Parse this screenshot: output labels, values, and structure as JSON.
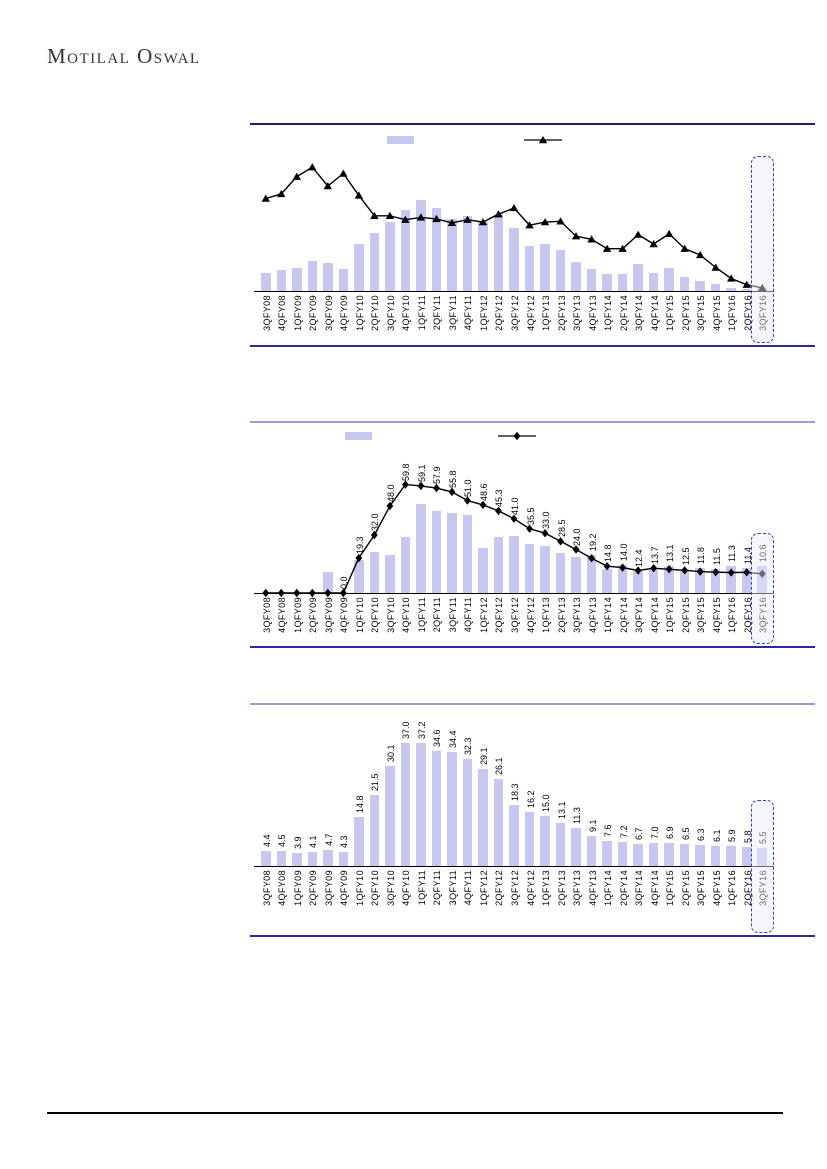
{
  "page": {
    "brand": "Motilal Oswal"
  },
  "highlighted_period": "3QFY16",
  "colors": {
    "bar_fill": "#C7C8F0",
    "line": "#000000",
    "chart_top_rule_dark": "#1E1E7D",
    "chart_top_rule_light": "#9C9CD6",
    "chart_bottom_rule": "#2B2B9C",
    "highlight_border": "#2F3FBF",
    "axis": "#000000"
  },
  "categories": [
    "3QFY08",
    "4QFY08",
    "1QFY09",
    "2QFY09",
    "3QFY09",
    "4QFY09",
    "1QFY10",
    "2QFY10",
    "3QFY10",
    "4QFY10",
    "1QFY11",
    "2QFY11",
    "3QFY11",
    "4QFY11",
    "1QFY12",
    "2QFY12",
    "3QFY12",
    "4QFY12",
    "1QFY13",
    "2QFY13",
    "3QFY13",
    "4QFY13",
    "1QFY14",
    "2QFY14",
    "3QFY14",
    "4QFY14",
    "1QFY15",
    "2QFY15",
    "3QFY15",
    "4QFY15",
    "1QFY16",
    "2QFY16",
    "3QFY16"
  ],
  "chart_data": [
    {
      "type": "bar+line",
      "legend": true,
      "marker": "triangle",
      "ylim": [
        0,
        90
      ],
      "series": [
        {
          "name": "bars",
          "type": "bar",
          "values": [
            11.5,
            13.5,
            15,
            19,
            18,
            14,
            30,
            37,
            44,
            52,
            58,
            53,
            46,
            48,
            44,
            49,
            40,
            29,
            30,
            26,
            18.5,
            14,
            11,
            11,
            17,
            11.5,
            15,
            9,
            6.5,
            4.5,
            2,
            1.5,
            2
          ]
        },
        {
          "name": "line",
          "type": "line",
          "values": [
            59,
            62,
            73,
            79,
            67,
            75,
            61,
            48,
            48,
            45.5,
            47,
            46,
            43.5,
            45.5,
            44,
            49,
            53,
            42,
            44,
            44.5,
            35,
            33,
            27,
            27,
            36,
            30,
            36.5,
            27,
            23,
            15,
            8,
            4,
            2
          ]
        }
      ],
      "value_labels": null,
      "highlight_last": true
    },
    {
      "type": "bar+line",
      "legend": true,
      "marker": "diamond",
      "ylim": [
        0,
        80
      ],
      "series": [
        {
          "name": "bars",
          "type": "bar",
          "values": [
            0,
            0,
            0,
            0,
            11.5,
            0,
            18,
            22.5,
            21,
            31,
            49,
            45,
            44,
            43,
            25,
            31,
            31.5,
            27,
            26,
            22,
            20,
            21,
            13.5,
            15.5,
            12,
            13,
            15,
            13,
            14,
            13.5,
            15,
            14,
            15
          ]
        },
        {
          "name": "line",
          "type": "line",
          "values": [
            0,
            0,
            0,
            0,
            0,
            0,
            19.3,
            32.0,
            48.0,
            59.8,
            59.1,
            57.9,
            55.8,
            51.0,
            48.6,
            45.3,
            41.0,
            35.5,
            33.0,
            28.5,
            24.0,
            19.2,
            14.8,
            14.0,
            12.4,
            13.7,
            13.1,
            12.5,
            11.8,
            11.5,
            11.3,
            11.4,
            10.6
          ]
        }
      ],
      "value_labels": [
        null,
        null,
        null,
        null,
        null,
        "0.0",
        "19.3",
        "32.0",
        "48.0",
        "59.8",
        "59.1",
        "57.9",
        "55.8",
        "51.0",
        "48.6",
        "45.3",
        "41.0",
        "35.5",
        "33.0",
        "28.5",
        "24.0",
        "19.2",
        "14.8",
        "14.0",
        "12.4",
        "13.7",
        "13.1",
        "12.5",
        "11.8",
        "11.5",
        "11.3",
        "11.4",
        "10.6"
      ],
      "highlight_last": true
    },
    {
      "type": "bar",
      "legend": false,
      "marker": null,
      "ylim": [
        0,
        47
      ],
      "series": [
        {
          "name": "bars",
          "type": "bar",
          "values": [
            4.4,
            4.5,
            3.9,
            4.1,
            4.7,
            4.3,
            14.8,
            21.5,
            30.1,
            37.0,
            37.2,
            34.6,
            34.4,
            32.3,
            29.1,
            26.1,
            18.3,
            16.2,
            15.0,
            13.1,
            11.3,
            9.1,
            7.6,
            7.2,
            6.7,
            7.0,
            6.9,
            6.5,
            6.3,
            6.1,
            5.9,
            5.8,
            5.5
          ]
        }
      ],
      "value_labels": [
        "4.4",
        "4.5",
        "3.9",
        "4.1",
        "4.7",
        "4.3",
        "14.8",
        "21.5",
        "30.1",
        "37.0",
        "37.2",
        "34.6",
        "34.4",
        "32.3",
        "29.1",
        "26.1",
        "18.3",
        "16.2",
        "15.0",
        "13.1",
        "11.3",
        "9.1",
        "7.6",
        "7.2",
        "6.7",
        "7.0",
        "6.9",
        "6.5",
        "6.3",
        "6.1",
        "5.9",
        "5.8",
        "5.5"
      ],
      "highlight_last": true
    }
  ]
}
